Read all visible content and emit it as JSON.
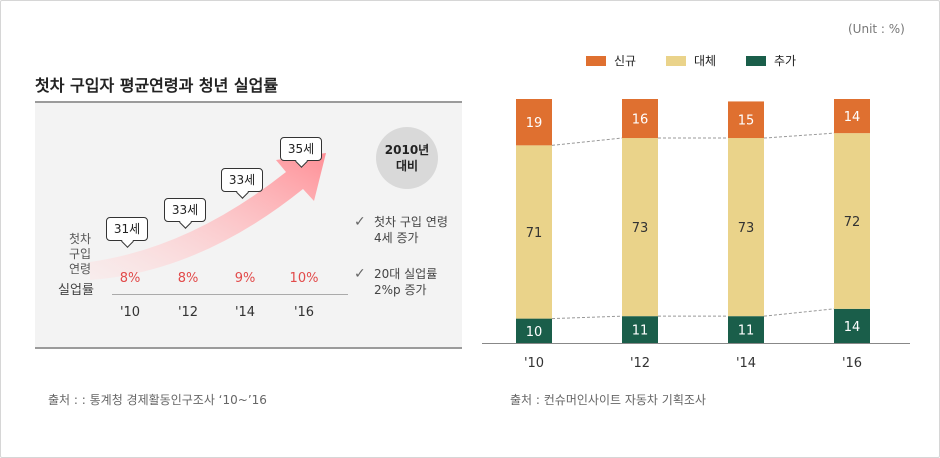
{
  "left": {
    "title": "첫차 구입자 평균연령과 청년 실업률",
    "row_label_age_lines": [
      "첫차",
      "구입",
      "연령"
    ],
    "row_label_unemployment": "실업률",
    "years": [
      "'10",
      "'12",
      "'14",
      "'16"
    ],
    "unemployment": [
      "8%",
      "8%",
      "9%",
      "10%"
    ],
    "ages": [
      "31세",
      "33세",
      "33세",
      "35세"
    ],
    "compare_lines": [
      "2010년",
      "대비"
    ],
    "checks": [
      {
        "lines": [
          "첫차 구입 연령",
          "4세 증가"
        ]
      },
      {
        "lines": [
          "20대 실업률",
          "2%p 증가"
        ]
      }
    ],
    "source": "출처 : : 통계청 경제활동인구조사 ‘10~’16"
  },
  "right": {
    "unit": "(Unit : %)",
    "source": "출처 : 컨슈머인사이트 자동차 기획조사"
  },
  "chart_data": {
    "type": "bar",
    "stacked": true,
    "categories": [
      "'10",
      "'12",
      "'14",
      "'16"
    ],
    "series": [
      {
        "name": "추가",
        "values": [
          10,
          11,
          11,
          14
        ],
        "color": "#1a5e4a"
      },
      {
        "name": "대체",
        "values": [
          71,
          73,
          73,
          72
        ],
        "color": "#ead38a"
      },
      {
        "name": "신규",
        "values": [
          19,
          16,
          15,
          14
        ],
        "color": "#df7030"
      }
    ],
    "legend_order": [
      "신규",
      "대체",
      "추가"
    ],
    "legend_position": "top",
    "ylim": [
      0,
      100
    ]
  }
}
